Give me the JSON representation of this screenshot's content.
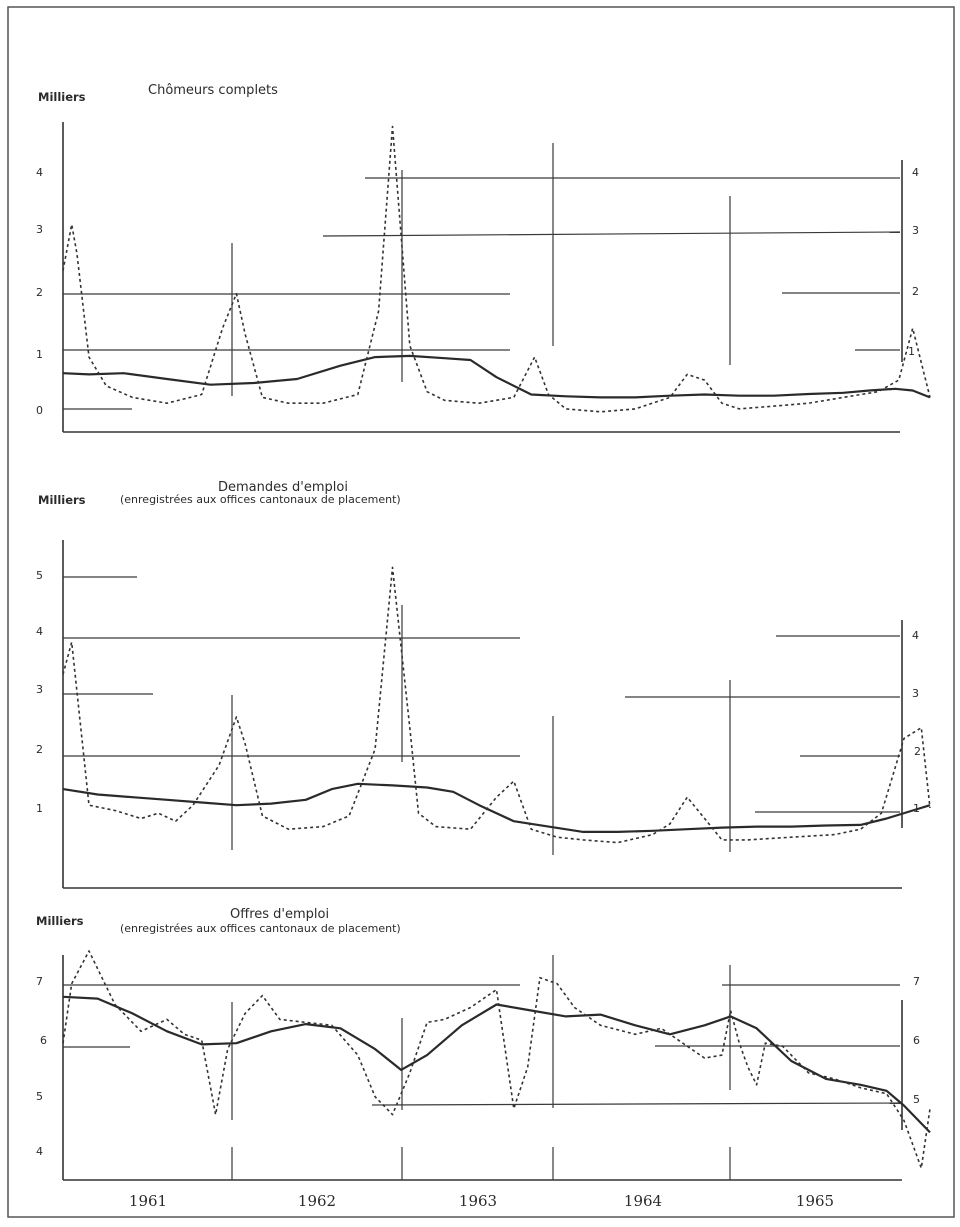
{
  "chart_data": [
    {
      "type": "line",
      "title": "Chômeurs complets",
      "subtitle": "",
      "ylabel": "Milliers",
      "yticks": [
        "0",
        "1",
        "2",
        "3",
        "4"
      ],
      "yticks_right": [
        "1",
        "2",
        "3",
        "4"
      ],
      "ylim": [
        -0.3,
        5.2
      ],
      "xlim": [
        1961.0,
        1966.0
      ],
      "series": [
        {
          "style": "solid",
          "x": [
            1961.0,
            1961.15,
            1961.35,
            1961.6,
            1961.85,
            1962.1,
            1962.35,
            1962.6,
            1962.8,
            1963.0,
            1963.2,
            1963.35,
            1963.5,
            1963.7,
            1963.9,
            1964.1,
            1964.3,
            1964.5,
            1964.7,
            1964.9,
            1965.1,
            1965.3,
            1965.5,
            1965.65,
            1965.8,
            1965.9,
            1966.0
          ],
          "y": [
            0.72,
            0.7,
            0.72,
            0.62,
            0.52,
            0.55,
            0.62,
            0.85,
            1.0,
            1.02,
            0.98,
            0.95,
            0.65,
            0.35,
            0.32,
            0.3,
            0.3,
            0.33,
            0.35,
            0.33,
            0.33,
            0.36,
            0.38,
            0.42,
            0.45,
            0.42,
            0.3
          ]
        },
        {
          "style": "dashed",
          "x": [
            1961.0,
            1961.05,
            1961.08,
            1961.15,
            1961.25,
            1961.4,
            1961.6,
            1961.8,
            1961.92,
            1962.0,
            1962.05,
            1962.15,
            1962.3,
            1962.5,
            1962.7,
            1962.82,
            1962.9,
            1963.0,
            1963.1,
            1963.2,
            1963.4,
            1963.6,
            1963.72,
            1963.8,
            1963.9,
            1964.1,
            1964.3,
            1964.5,
            1964.6,
            1964.7,
            1964.8,
            1964.9,
            1965.1,
            1965.3,
            1965.5,
            1965.7,
            1965.82,
            1965.9,
            1966.0
          ],
          "y": [
            2.5,
            3.3,
            2.8,
            1.0,
            0.5,
            0.3,
            0.2,
            0.35,
            1.5,
            2.1,
            1.4,
            0.3,
            0.2,
            0.2,
            0.35,
            1.8,
            5.0,
            1.2,
            0.4,
            0.25,
            0.2,
            0.3,
            1.0,
            0.35,
            0.1,
            0.05,
            0.1,
            0.3,
            0.7,
            0.6,
            0.2,
            0.1,
            0.15,
            0.2,
            0.3,
            0.4,
            0.6,
            1.5,
            0.3
          ]
        }
      ]
    },
    {
      "type": "line",
      "title": "Demandes d'emploi",
      "subtitle": "(enregistrées aux offices cantonaux de placement)",
      "ylabel": "Milliers",
      "yticks": [
        "1",
        "2",
        "3",
        "4",
        "5"
      ],
      "yticks_right": [
        "1",
        "2",
        "3",
        "4"
      ],
      "ylim": [
        -0.8,
        5.9
      ],
      "xlim": [
        1961.0,
        1966.0
      ],
      "series": [
        {
          "style": "solid",
          "x": [
            1961.0,
            1961.2,
            1961.4,
            1961.6,
            1961.8,
            1962.0,
            1962.2,
            1962.4,
            1962.55,
            1962.7,
            1962.9,
            1963.1,
            1963.25,
            1963.4,
            1963.6,
            1963.8,
            1964.0,
            1964.2,
            1964.4,
            1964.6,
            1964.8,
            1965.0,
            1965.2,
            1965.4,
            1965.6,
            1965.75,
            1965.9,
            1966.0
          ],
          "y": [
            1.05,
            0.95,
            0.9,
            0.85,
            0.8,
            0.75,
            0.78,
            0.85,
            1.05,
            1.15,
            1.12,
            1.08,
            1.0,
            0.75,
            0.45,
            0.35,
            0.25,
            0.25,
            0.27,
            0.3,
            0.33,
            0.35,
            0.35,
            0.37,
            0.38,
            0.5,
            0.65,
            0.75
          ]
        },
        {
          "style": "dashed",
          "x": [
            1961.0,
            1961.05,
            1961.15,
            1961.3,
            1961.45,
            1961.55,
            1961.65,
            1961.75,
            1961.9,
            1962.0,
            1962.05,
            1962.15,
            1962.3,
            1962.5,
            1962.65,
            1962.8,
            1962.9,
            1963.0,
            1963.05,
            1963.15,
            1963.35,
            1963.5,
            1963.6,
            1963.7,
            1963.85,
            1964.0,
            1964.2,
            1964.4,
            1964.5,
            1964.6,
            1964.7,
            1964.8,
            1964.95,
            1965.2,
            1965.45,
            1965.6,
            1965.72,
            1965.85,
            1965.95,
            1966.0
          ],
          "y": [
            3.2,
            3.8,
            0.75,
            0.65,
            0.5,
            0.6,
            0.45,
            0.75,
            1.5,
            2.4,
            1.9,
            0.55,
            0.3,
            0.35,
            0.55,
            1.8,
            5.2,
            2.2,
            0.6,
            0.35,
            0.3,
            0.9,
            1.2,
            0.3,
            0.15,
            0.1,
            0.05,
            0.2,
            0.4,
            0.9,
            0.5,
            0.1,
            0.1,
            0.15,
            0.2,
            0.3,
            0.6,
            2.0,
            2.2,
            0.7
          ]
        }
      ]
    },
    {
      "type": "line",
      "title": "Offres d'emploi",
      "subtitle": "(enregistrées aux offices cantonaux de placement)",
      "ylabel": "Milliers",
      "yticks": [
        "4",
        "5",
        "6",
        "7"
      ],
      "yticks_right": [
        "5",
        "6",
        "7"
      ],
      "ylim": [
        3.6,
        7.5
      ],
      "xlim": [
        1961.0,
        1966.0
      ],
      "series": [
        {
          "style": "solid",
          "x": [
            1961.0,
            1961.2,
            1961.4,
            1961.6,
            1961.8,
            1962.0,
            1962.2,
            1962.4,
            1962.6,
            1962.8,
            1962.95,
            1963.1,
            1963.3,
            1963.5,
            1963.7,
            1963.9,
            1964.1,
            1964.3,
            1964.5,
            1964.7,
            1964.85,
            1965.0,
            1965.2,
            1965.4,
            1965.6,
            1965.75,
            1965.85,
            1966.0
          ],
          "y": [
            6.68,
            6.65,
            6.4,
            6.1,
            5.88,
            5.9,
            6.1,
            6.22,
            6.15,
            5.8,
            5.45,
            5.7,
            6.2,
            6.55,
            6.45,
            6.35,
            6.38,
            6.2,
            6.05,
            6.2,
            6.35,
            6.15,
            5.6,
            5.3,
            5.2,
            5.1,
            4.85,
            4.4
          ]
        },
        {
          "style": "dashed",
          "x": [
            1961.0,
            1961.05,
            1961.15,
            1961.3,
            1961.45,
            1961.6,
            1961.7,
            1961.8,
            1961.88,
            1961.95,
            1962.05,
            1962.15,
            1962.25,
            1962.4,
            1962.55,
            1962.7,
            1962.8,
            1962.9,
            1963.0,
            1963.1,
            1963.2,
            1963.35,
            1963.5,
            1963.6,
            1963.68,
            1963.75,
            1963.85,
            1963.95,
            1964.1,
            1964.3,
            1964.45,
            1964.6,
            1964.7,
            1964.8,
            1964.85,
            1964.9,
            1964.95,
            1965.0,
            1965.05,
            1965.15,
            1965.3,
            1965.45,
            1965.6,
            1965.75,
            1965.85,
            1965.95,
            1966.0
          ],
          "y": [
            5.9,
            6.9,
            7.45,
            6.55,
            6.1,
            6.3,
            6.05,
            5.95,
            4.7,
            5.8,
            6.4,
            6.7,
            6.3,
            6.25,
            6.2,
            5.7,
            5.0,
            4.7,
            5.4,
            6.25,
            6.3,
            6.5,
            6.8,
            4.8,
            5.5,
            7.0,
            6.9,
            6.5,
            6.2,
            6.05,
            6.15,
            5.85,
            5.65,
            5.7,
            6.45,
            5.9,
            5.5,
            5.2,
            5.9,
            5.85,
            5.4,
            5.3,
            5.15,
            5.05,
            4.6,
            3.8,
            4.8
          ]
        }
      ]
    }
  ],
  "x_axis": {
    "years": [
      "1961",
      "1962",
      "1963",
      "1964",
      "1965"
    ]
  }
}
